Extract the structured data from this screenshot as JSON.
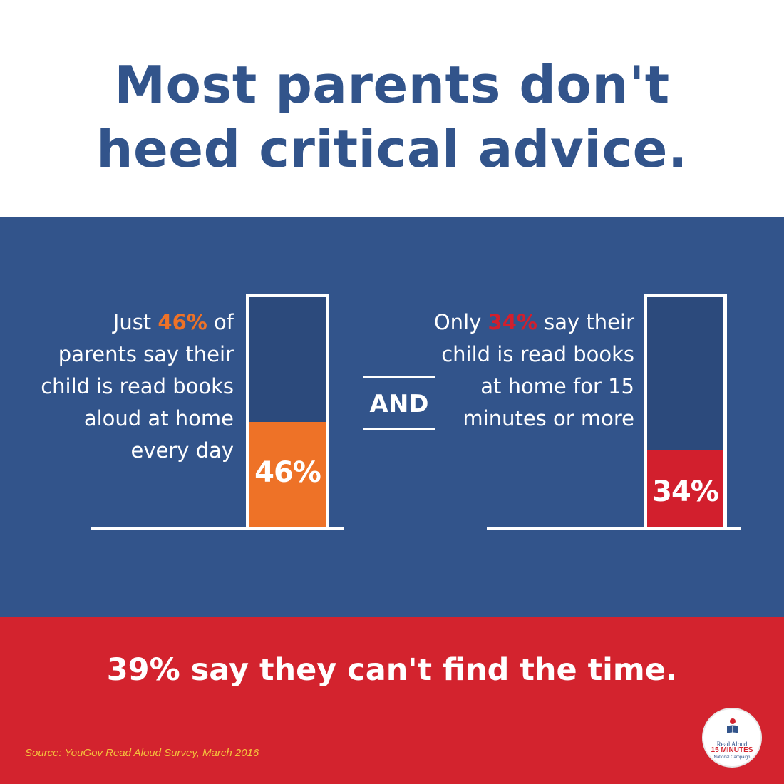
{
  "title": {
    "line1": "Most parents don't",
    "line2": "heed critical advice."
  },
  "colors": {
    "blue": "#32548b",
    "dark_blue": "#2c4a7c",
    "red": "#d3232e",
    "orange": "#ee7227",
    "bar_red": "#d21f2d",
    "source_yellow": "#f4c23c"
  },
  "stat1": {
    "pre": "Just ",
    "highlight": "46%",
    "post": " of parents say their child is read books aloud at home every day"
  },
  "connector": "AND",
  "stat2": {
    "pre": "Only ",
    "highlight": "34%",
    "post": " say their child is read books at home for 15 minutes or more"
  },
  "chart_data": [
    {
      "type": "bar",
      "categories": [
        "read books aloud at home every day"
      ],
      "values": [
        46
      ],
      "ylim": [
        0,
        100
      ],
      "data_label": "46%",
      "color": "#ee7227"
    },
    {
      "type": "bar",
      "categories": [
        "read books at home for 15 minutes or more"
      ],
      "values": [
        34
      ],
      "ylim": [
        0,
        100
      ],
      "data_label": "34%",
      "color": "#d21f2d"
    }
  ],
  "footer": {
    "main": "39% say they can't find the time.",
    "source": "Source: YouGov Read Aloud Survey, March 2016"
  },
  "logo": {
    "line1": "Read Aloud",
    "line2": "15 MINUTES",
    "line3": "National Campaign"
  }
}
